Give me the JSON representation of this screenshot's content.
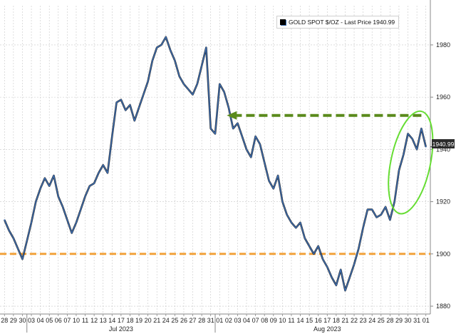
{
  "chart_data": {
    "type": "line",
    "legend": {
      "series_name": "GOLD SPOT $/OZ",
      "separator": " - ",
      "last_price_label": "Last Price 1940.99",
      "placement": "top-right"
    },
    "last_price": 1940.99,
    "last_price_tag": "1940.99",
    "y_axis": {
      "ticks": [
        1880,
        1900,
        1920,
        1940,
        1960,
        1980
      ],
      "range": [
        1877,
        1995
      ],
      "side": "right"
    },
    "x_axis": {
      "day_labels": [
        "28",
        "29",
        "30",
        "03",
        "04",
        "05",
        "06",
        "07",
        "10",
        "11",
        "12",
        "13",
        "14",
        "17",
        "18",
        "19",
        "20",
        "21",
        "24",
        "25",
        "26",
        "27",
        "28",
        "31",
        "01",
        "02",
        "03",
        "04",
        "07",
        "08",
        "09",
        "10",
        "11",
        "14",
        "15",
        "16",
        "17",
        "18",
        "21",
        "22",
        "23",
        "24",
        "25",
        "28",
        "29",
        "30",
        "31",
        "01"
      ],
      "month_labels": [
        {
          "text": "Jul 2023",
          "at_index": 13
        },
        {
          "text": "Aug 2023",
          "at_index": 36
        }
      ],
      "month_separators_before_index": [
        3,
        24
      ]
    },
    "grid": true,
    "series": [
      {
        "name": "GOLD SPOT $/OZ",
        "color": "#3d6fb4",
        "shadow_color": "#000000",
        "points": [
          [
            0,
            1913
          ],
          [
            0.5,
            1909
          ],
          [
            1,
            1906
          ],
          [
            1.5,
            1902
          ],
          [
            2,
            1898
          ],
          [
            2.5,
            1905
          ],
          [
            3,
            1912
          ],
          [
            3.5,
            1920
          ],
          [
            4,
            1925
          ],
          [
            4.5,
            1929
          ],
          [
            5,
            1926
          ],
          [
            5.5,
            1930
          ],
          [
            6,
            1922
          ],
          [
            6.5,
            1918
          ],
          [
            7,
            1913
          ],
          [
            7.5,
            1908
          ],
          [
            8,
            1912
          ],
          [
            8.5,
            1917
          ],
          [
            9,
            1922
          ],
          [
            9.5,
            1926
          ],
          [
            10,
            1927
          ],
          [
            10.5,
            1931
          ],
          [
            11,
            1934
          ],
          [
            11.5,
            1931
          ],
          [
            12,
            1945
          ],
          [
            12.5,
            1958
          ],
          [
            13,
            1959
          ],
          [
            13.5,
            1955
          ],
          [
            14,
            1957
          ],
          [
            14.5,
            1951
          ],
          [
            15,
            1956
          ],
          [
            15.5,
            1961
          ],
          [
            16,
            1966
          ],
          [
            16.5,
            1974
          ],
          [
            17,
            1979
          ],
          [
            17.5,
            1980
          ],
          [
            18,
            1983
          ],
          [
            18.5,
            1978
          ],
          [
            19,
            1974
          ],
          [
            19.5,
            1968
          ],
          [
            20,
            1965
          ],
          [
            20.5,
            1963
          ],
          [
            21,
            1961
          ],
          [
            21.5,
            1965
          ],
          [
            22,
            1972
          ],
          [
            22.5,
            1979
          ],
          [
            23,
            1948
          ],
          [
            23.5,
            1946
          ],
          [
            24,
            1965
          ],
          [
            24.5,
            1962
          ],
          [
            25,
            1956
          ],
          [
            25.5,
            1948
          ],
          [
            26,
            1950
          ],
          [
            26.5,
            1945
          ],
          [
            27,
            1940
          ],
          [
            27.5,
            1937
          ],
          [
            28,
            1945
          ],
          [
            28.5,
            1942
          ],
          [
            29,
            1935
          ],
          [
            29.5,
            1928
          ],
          [
            30,
            1925
          ],
          [
            30.5,
            1930
          ],
          [
            31,
            1920
          ],
          [
            31.5,
            1915
          ],
          [
            32,
            1912
          ],
          [
            32.5,
            1910
          ],
          [
            33,
            1912
          ],
          [
            33.5,
            1906
          ],
          [
            34,
            1903
          ],
          [
            34.5,
            1900
          ],
          [
            35,
            1903
          ],
          [
            35.5,
            1898
          ],
          [
            36,
            1895
          ],
          [
            36.5,
            1891
          ],
          [
            37,
            1888
          ],
          [
            37.5,
            1894
          ],
          [
            38,
            1886
          ],
          [
            38.5,
            1891
          ],
          [
            39,
            1896
          ],
          [
            39.5,
            1902
          ],
          [
            40,
            1910
          ],
          [
            40.5,
            1917
          ],
          [
            41,
            1917
          ],
          [
            41.5,
            1914
          ],
          [
            42,
            1915
          ],
          [
            42.5,
            1918
          ],
          [
            43,
            1913
          ],
          [
            43.5,
            1920
          ],
          [
            44,
            1932
          ],
          [
            44.5,
            1938
          ],
          [
            45,
            1946
          ],
          [
            45.5,
            1944
          ],
          [
            46,
            1940
          ],
          [
            46.5,
            1948
          ],
          [
            47,
            1941
          ]
        ]
      }
    ],
    "annotations": [
      {
        "kind": "dashed-horizontal",
        "color": "#f2a23c",
        "value": 1900
      },
      {
        "kind": "dashed-arrow",
        "color": "#5a8a1c",
        "value": 1953,
        "from_index": 46.5,
        "to_index": 24.8
      },
      {
        "kind": "ellipse",
        "color": "#66dd33",
        "center_index": 45.3,
        "center_value": 1935,
        "rx_days": 2.2,
        "ry_value": 20
      }
    ]
  }
}
